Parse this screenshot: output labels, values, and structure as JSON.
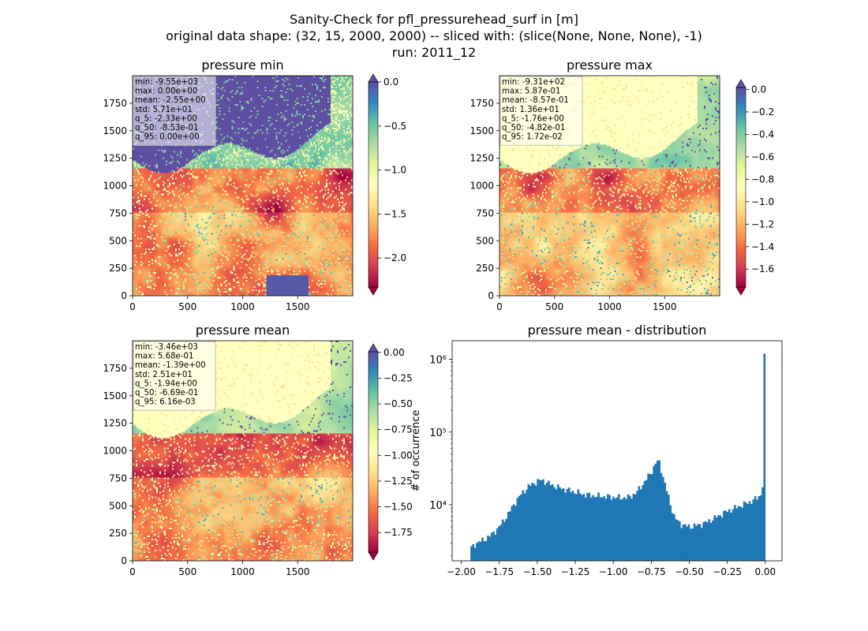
{
  "figure": {
    "title_lines": [
      "Sanity-Check for pfl_pressurehead_surf in [m]",
      "original data shape: (32, 15, 2000, 2000) -- sliced with: (slice(None, None, None), -1)",
      "run: 2011_12"
    ]
  },
  "colormap": {
    "name": "Spectral",
    "stops": [
      "#9e0142",
      "#d53e4f",
      "#f46d43",
      "#fdae61",
      "#fee08b",
      "#ffffbf",
      "#e6f598",
      "#abdda4",
      "#66c2a5",
      "#3288bd",
      "#5e4fa2"
    ]
  },
  "chart_data": [
    {
      "type": "heatmap",
      "title": "pressure min",
      "x_ticks": [
        "0",
        "500",
        "1000",
        "1500"
      ],
      "y_ticks": [
        "0",
        "250",
        "500",
        "750",
        "1000",
        "1250",
        "1500",
        "1750"
      ],
      "xlim": [
        0,
        2000
      ],
      "ylim": [
        0,
        2000
      ],
      "colorbar": {
        "range": [
          -2.33,
          0.0
        ],
        "ticks": [
          0.0,
          -0.5,
          -1.0,
          -1.5,
          -2.0
        ],
        "tick_labels": [
          "0.0",
          "−0.5",
          "−1.0",
          "−1.5",
          "−2.0"
        ],
        "extend": "both"
      },
      "stats": [
        "min: -9.55e+03",
        "max: 0.00e+00",
        "mean: -2.55e+00",
        "std: 5.71e+01",
        "q_5: -2.33e+00",
        "q_50: -8.53e-01",
        "q_95: 0.00e+00"
      ]
    },
    {
      "type": "heatmap",
      "title": "pressure max",
      "x_ticks": [
        "0",
        "500",
        "1000",
        "1500"
      ],
      "y_ticks": [
        "0",
        "250",
        "500",
        "750",
        "1000",
        "1250",
        "1500",
        "1750"
      ],
      "xlim": [
        0,
        2000
      ],
      "ylim": [
        0,
        2000
      ],
      "colorbar": {
        "range": [
          -1.76,
          0.0172
        ],
        "ticks": [
          0.0,
          -0.2,
          -0.4,
          -0.6,
          -0.8,
          -1.0,
          -1.2,
          -1.4,
          -1.6
        ],
        "tick_labels": [
          "0.0",
          "−0.2",
          "−0.4",
          "−0.6",
          "−0.8",
          "−1.0",
          "−1.2",
          "−1.4",
          "−1.6"
        ],
        "extend": "both"
      },
      "stats": [
        "min: -9.31e+02",
        "max: 5.87e-01",
        "mean: -8.57e-01",
        "std: 1.36e+01",
        "q_5: -1.76e+00",
        "q_50: -4.82e-01",
        "q_95: 1.72e-02"
      ]
    },
    {
      "type": "heatmap",
      "title": "pressure mean",
      "x_ticks": [
        "0",
        "500",
        "1000",
        "1500"
      ],
      "y_ticks": [
        "0",
        "250",
        "500",
        "750",
        "1000",
        "1250",
        "1500",
        "1750"
      ],
      "xlim": [
        0,
        2000
      ],
      "ylim": [
        0,
        2000
      ],
      "colorbar": {
        "range": [
          -1.94,
          0.00616
        ],
        "ticks": [
          0.0,
          -0.25,
          -0.5,
          -0.75,
          -1.0,
          -1.25,
          -1.5,
          -1.75
        ],
        "tick_labels": [
          "0.00",
          "−0.25",
          "−0.50",
          "−0.75",
          "−1.00",
          "−1.25",
          "−1.50",
          "−1.75"
        ],
        "extend": "both"
      },
      "stats": [
        "min: -3.46e+03",
        "max: 5.68e-01",
        "mean: -1.39e+00",
        "std: 2.51e+01",
        "q_5: -1.94e+00",
        "q_50: -6.69e-01",
        "q_95: 6.16e-03"
      ]
    },
    {
      "type": "bar",
      "title": "pressure mean - distribution",
      "ylabel": "# of occurrence",
      "y_scale": "log",
      "xlim": [
        -2.06,
        0.11
      ],
      "ylim": [
        1700,
        1800000
      ],
      "x_ticks": [
        -2.0,
        -1.75,
        -1.5,
        -1.25,
        -1.0,
        -0.75,
        -0.5,
        -0.25,
        0.0
      ],
      "x_tick_labels": [
        "−2.00",
        "−1.75",
        "−1.50",
        "−1.25",
        "−1.00",
        "−0.75",
        "−0.50",
        "−0.25",
        "0.00"
      ],
      "y_ticks": [
        10000,
        100000,
        1000000
      ],
      "y_tick_labels": [
        "10⁴",
        "10⁵",
        "10⁶"
      ],
      "bins": {
        "start": -1.94,
        "end": 0.0,
        "count": 160
      },
      "profile": {
        "x": [
          -1.94,
          -1.92,
          -1.9,
          -1.85,
          -1.8,
          -1.75,
          -1.7,
          -1.65,
          -1.6,
          -1.55,
          -1.5,
          -1.47,
          -1.45,
          -1.4,
          -1.35,
          -1.3,
          -1.25,
          -1.2,
          -1.15,
          -1.1,
          -1.05,
          -1.0,
          -0.95,
          -0.9,
          -0.85,
          -0.8,
          -0.75,
          -0.72,
          -0.7,
          -0.68,
          -0.65,
          -0.62,
          -0.6,
          -0.58,
          -0.55,
          -0.52,
          -0.5,
          -0.45,
          -0.4,
          -0.35,
          -0.3,
          -0.25,
          -0.2,
          -0.15,
          -0.1,
          -0.05,
          -0.03,
          -0.02,
          -0.01,
          -0.005,
          0.0
        ],
        "y": [
          2500,
          2700,
          3000,
          3300,
          3900,
          5000,
          7000,
          10500,
          14500,
          18500,
          21000,
          22000,
          21000,
          18500,
          17000,
          16000,
          15000,
          14000,
          13500,
          13200,
          13000,
          12800,
          12500,
          12700,
          14500,
          20000,
          28000,
          38000,
          40000,
          28000,
          16000,
          9500,
          7000,
          6000,
          5400,
          5100,
          5000,
          5200,
          5600,
          6300,
          7200,
          8200,
          9000,
          10000,
          11000,
          12500,
          14000,
          17000,
          27000,
          120000,
          1200000
        ]
      },
      "bar_color": "#1f77b4"
    }
  ]
}
